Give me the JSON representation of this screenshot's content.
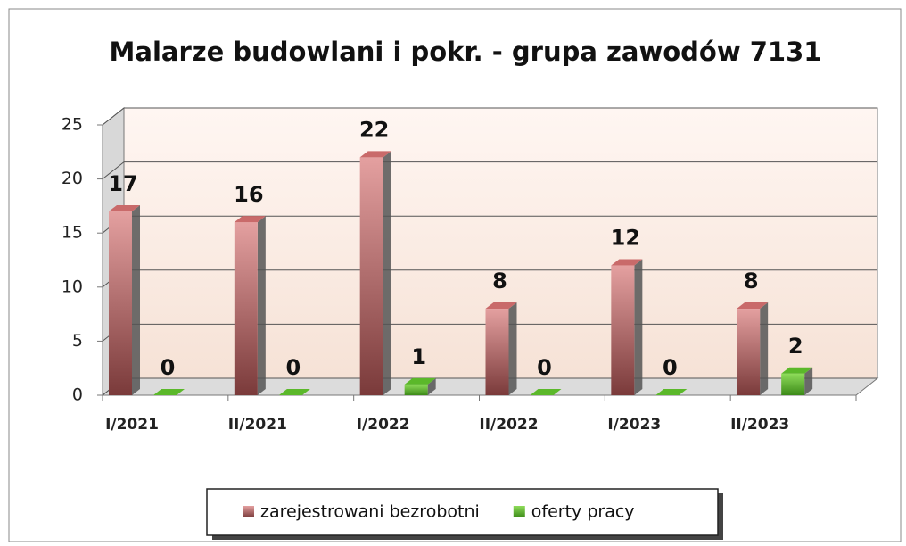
{
  "chart_data": {
    "type": "bar",
    "title": "Malarze budowlani i pokr. - grupa zawodów 7131",
    "categories": [
      "I/2021",
      "II/2021",
      "I/2022",
      "II/2022",
      "I/2023",
      "II/2023"
    ],
    "series": [
      {
        "name": "zarejestrowani bezrobotni",
        "color": "#c96a6a",
        "values": [
          17,
          16,
          22,
          8,
          12,
          8
        ]
      },
      {
        "name": "oferty pracy",
        "color": "#5bb82a",
        "values": [
          0,
          0,
          1,
          0,
          0,
          2
        ]
      }
    ],
    "ylim": [
      0,
      25
    ],
    "yticks": [
      0,
      5,
      10,
      15,
      20,
      25
    ],
    "grid": true,
    "legend": "bottom"
  }
}
